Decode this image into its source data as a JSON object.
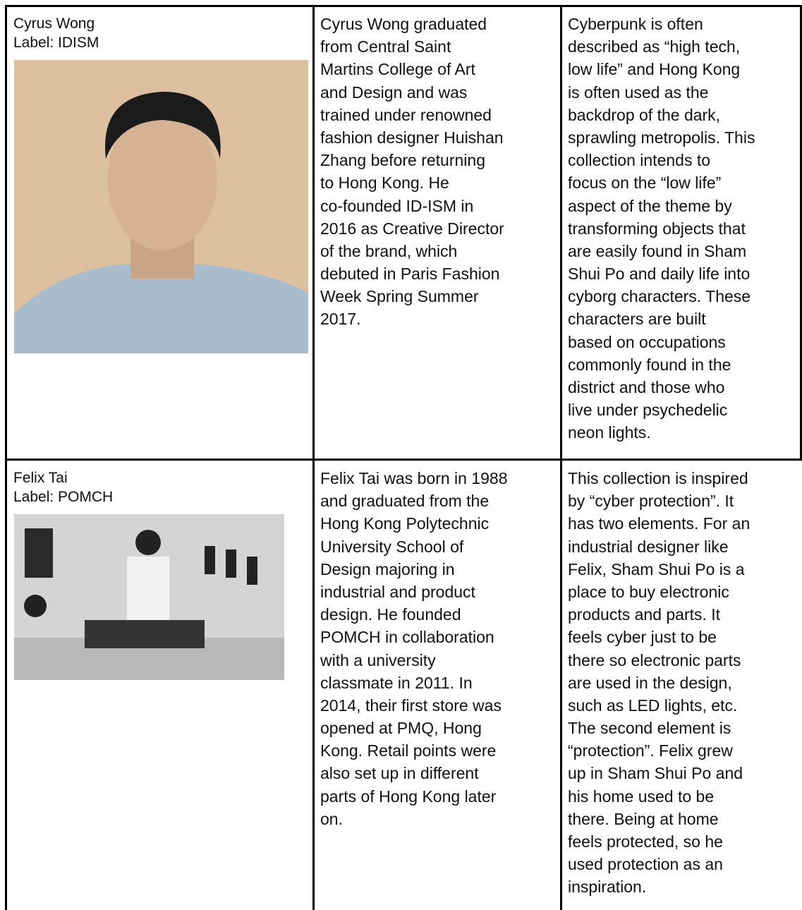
{
  "table": {
    "rows": [
      {
        "name": "Cyrus Wong",
        "label": "Label: IDISM",
        "bio": [
          "Cyrus Wong graduated",
          "from Central Saint",
          "Martins College of Art",
          "and Design and was",
          "trained under renowned",
          "fashion designer Huishan",
          "Zhang before returning",
          "to Hong Kong. He",
          "co-founded ID-ISM in",
          "2016 as Creative Director",
          "of the brand, which",
          "debuted in Paris Fashion",
          "Week Spring Summer",
          "2017."
        ],
        "collection": [
          "Cyberpunk is often",
          "described as “high tech,",
          "low life” and Hong Kong",
          "is often used as the",
          "backdrop of the dark,",
          "sprawling metropolis. This",
          "collection intends to",
          "focus on the “low life”",
          "aspect of the theme by",
          "transforming objects that",
          "are easily found in Sham",
          "Shui Po and daily life into",
          "cyborg characters. These",
          "characters are built",
          "based on occupations",
          "commonly found in the",
          "district and those who",
          "live under psychedelic",
          "neon lights."
        ]
      },
      {
        "name": "Felix Tai",
        "label": "Label: POMCH",
        "bio": [
          "Felix Tai was born in 1988",
          "and graduated from the",
          "Hong Kong Polytechnic",
          "University School of",
          "Design majoring in",
          "industrial and product",
          "design. He founded",
          "POMCH in collaboration",
          "with a university",
          "classmate in 2011. In",
          "2014, their first store was",
          "opened at PMQ, Hong",
          "Kong. Retail points were",
          "also set up in different",
          "parts of Hong Kong later",
          "on."
        ],
        "collection": [
          "This collection is inspired",
          "by “cyber protection”. It",
          "has two elements. For an",
          "industrial designer like",
          "Felix, Sham Shui Po is a",
          "place to buy electronic",
          "products and parts. It",
          "feels cyber just to be",
          "there so electronic parts",
          "are used in the design,",
          "such as LED lights, etc.",
          "The second element is",
          "“protection”. Felix grew",
          "up in Sham Shui Po and",
          "his home used to be",
          "there. Being at home",
          "feels protected, so he",
          "used protection as an",
          "inspiration."
        ]
      }
    ]
  }
}
